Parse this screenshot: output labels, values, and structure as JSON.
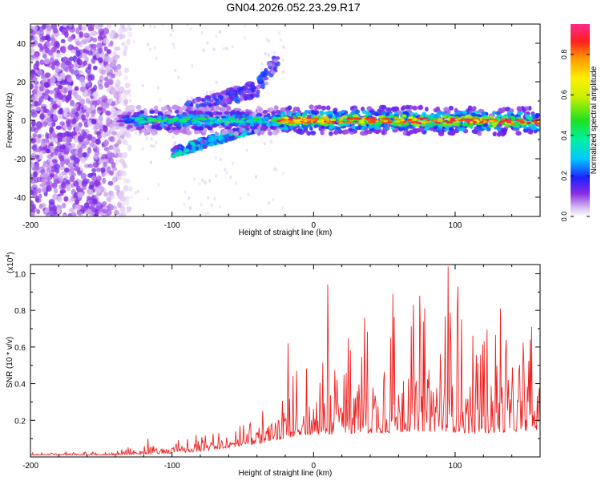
{
  "title": "GN04.2026.052.23.29.R17",
  "colors": {
    "snr_line": "#ee2222",
    "axis": "#000000"
  },
  "chart_data": [
    {
      "type": "heatmap",
      "name": "spectrogram",
      "xlabel": "Height of straight line (km)",
      "ylabel": "Frequency (Hz)",
      "xlim": [
        -200,
        160
      ],
      "ylim": [
        -50,
        50
      ],
      "xticks": [
        -200,
        -100,
        0,
        100
      ],
      "xtick_labels": [
        "-200",
        "-100",
        "0",
        "100"
      ],
      "yticks": [
        -40,
        -20,
        0,
        20,
        40
      ],
      "ytick_labels": [
        "-40",
        "-20",
        "0",
        "20",
        "40"
      ],
      "colorbar": {
        "label": "Normalized spectral amplitude",
        "range": [
          0.0,
          0.95
        ],
        "ticks": [
          0.0,
          0.2,
          0.4,
          0.6,
          0.8
        ],
        "tick_labels": [
          "0.0",
          "0.2",
          "0.4",
          "0.6",
          "0.8"
        ]
      },
      "features": [
        {
          "name": "noise region",
          "x_range": [
            -200,
            -130
          ],
          "freq_range": [
            -50,
            50
          ],
          "amplitude": 0.05
        },
        {
          "name": "main echo band",
          "x_range": [
            -140,
            160
          ],
          "freq_center": 0,
          "freq_width": 6,
          "amplitude_peak": 0.92
        },
        {
          "name": "upper diagonal streak",
          "x_range": [
            -90,
            -25
          ],
          "freq_range": [
            5,
            30
          ],
          "amplitude": 0.2
        },
        {
          "name": "lower diagonal streak",
          "x_range": [
            -100,
            -35
          ],
          "freq_range": [
            -17,
            -2
          ],
          "amplitude": 0.3
        }
      ]
    },
    {
      "type": "line",
      "name": "snr",
      "xlabel": "Height of straight line (km)",
      "ylabel": "SNR (10 * v/v)",
      "y_multiplier_label": "(x10",
      "y_multiplier_exp": "4",
      "y_multiplier_close": ")",
      "xlim": [
        -200,
        160
      ],
      "ylim": [
        0,
        1.05
      ],
      "xticks": [
        -200,
        -100,
        0,
        100
      ],
      "xtick_labels": [
        "-200",
        "-100",
        "0",
        "100"
      ],
      "yticks": [
        0.2,
        0.4,
        0.6,
        0.8,
        1.0
      ],
      "ytick_labels": [
        "0.2",
        "0.4",
        "0.6",
        "0.8",
        "1.0"
      ],
      "series": [
        {
          "name": "SNR",
          "x_step": 0.5,
          "envelope": {
            "x": [
              -200,
              -150,
              -120,
              -100,
              -80,
              -60,
              -40,
              -20,
              -10,
              0,
              10,
              30,
              50,
              70,
              90,
              110,
              130,
              160
            ],
            "baseline": [
              0.01,
              0.01,
              0.015,
              0.02,
              0.03,
              0.05,
              0.07,
              0.1,
              0.12,
              0.12,
              0.12,
              0.13,
              0.13,
              0.14,
              0.14,
              0.13,
              0.13,
              0.15
            ],
            "amplitude": [
              0.015,
              0.02,
              0.05,
              0.07,
              0.1,
              0.12,
              0.18,
              0.3,
              0.45,
              0.5,
              0.55,
              0.6,
              0.65,
              0.7,
              0.75,
              0.65,
              0.6,
              0.5
            ]
          },
          "peaks": [
            {
              "x": -117,
              "y": 0.1
            },
            {
              "x": -18,
              "y": 0.62
            },
            {
              "x": -12,
              "y": 0.47
            },
            {
              "x": 10,
              "y": 0.94
            },
            {
              "x": 36,
              "y": 0.76
            },
            {
              "x": 56,
              "y": 0.89
            },
            {
              "x": 75,
              "y": 0.88
            },
            {
              "x": 95,
              "y": 1.04
            },
            {
              "x": 102,
              "y": 0.93
            },
            {
              "x": 132,
              "y": 0.81
            },
            {
              "x": 154,
              "y": 0.71
            }
          ]
        }
      ]
    }
  ]
}
